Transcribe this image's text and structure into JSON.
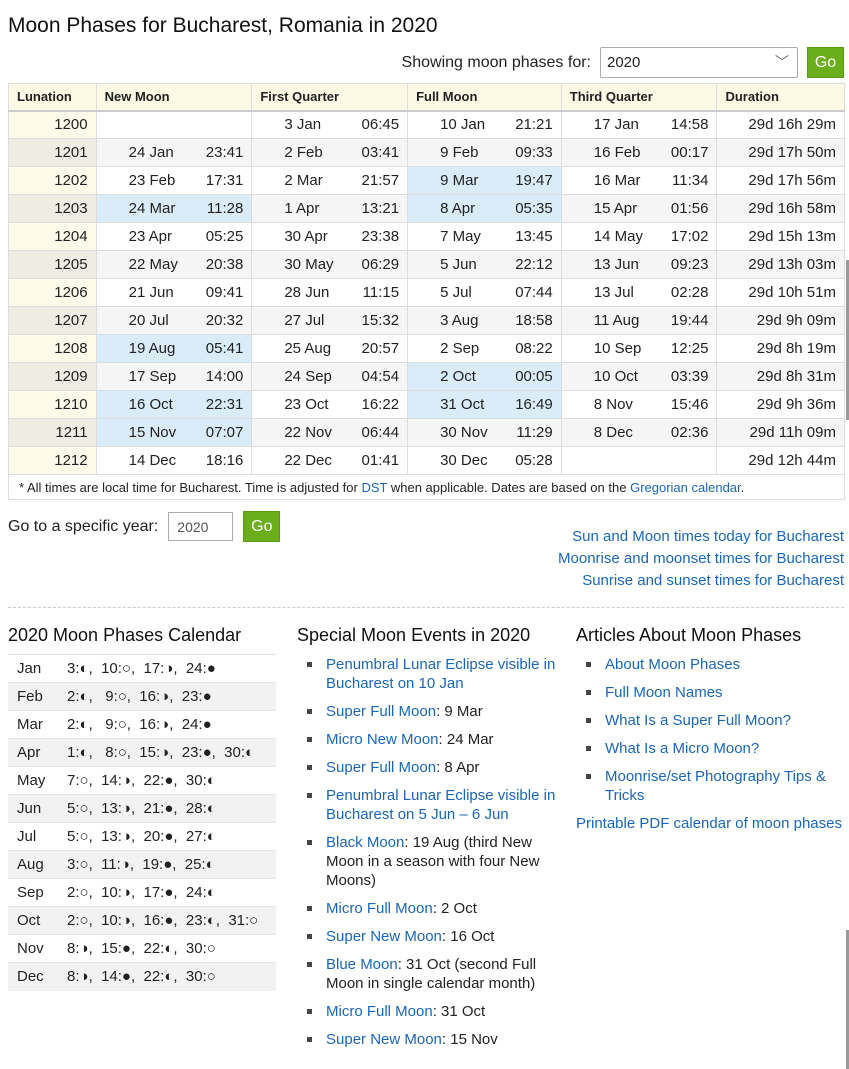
{
  "title": "Moon Phases for Bucharest, Romania in 2020",
  "selector": {
    "label": "Showing moon phases for:",
    "value": "2020",
    "go": "Go"
  },
  "table": {
    "headers": [
      "Lunation",
      "New Moon",
      "First Quarter",
      "Full Moon",
      "Third Quarter",
      "Duration"
    ],
    "rows": [
      {
        "lun": "1200",
        "new": [
          "",
          ""
        ],
        "fq": [
          "3 Jan",
          "06:45"
        ],
        "full": [
          "10 Jan",
          "21:21"
        ],
        "tq": [
          "17 Jan",
          "14:58"
        ],
        "dur": "29d 16h 29m",
        "hl": []
      },
      {
        "lun": "1201",
        "new": [
          "24 Jan",
          "23:41"
        ],
        "fq": [
          "2 Feb",
          "03:41"
        ],
        "full": [
          "9 Feb",
          "09:33"
        ],
        "tq": [
          "16 Feb",
          "00:17"
        ],
        "dur": "29d 17h 50m",
        "hl": []
      },
      {
        "lun": "1202",
        "new": [
          "23 Feb",
          "17:31"
        ],
        "fq": [
          "2 Mar",
          "21:57"
        ],
        "full": [
          "9 Mar",
          "19:47"
        ],
        "tq": [
          "16 Mar",
          "11:34"
        ],
        "dur": "29d 17h 56m",
        "hl": [
          "full"
        ]
      },
      {
        "lun": "1203",
        "new": [
          "24 Mar",
          "11:28"
        ],
        "fq": [
          "1 Apr",
          "13:21"
        ],
        "full": [
          "8 Apr",
          "05:35"
        ],
        "tq": [
          "15 Apr",
          "01:56"
        ],
        "dur": "29d 16h 58m",
        "hl": [
          "new",
          "full"
        ]
      },
      {
        "lun": "1204",
        "new": [
          "23 Apr",
          "05:25"
        ],
        "fq": [
          "30 Apr",
          "23:38"
        ],
        "full": [
          "7 May",
          "13:45"
        ],
        "tq": [
          "14 May",
          "17:02"
        ],
        "dur": "29d 15h 13m",
        "hl": []
      },
      {
        "lun": "1205",
        "new": [
          "22 May",
          "20:38"
        ],
        "fq": [
          "30 May",
          "06:29"
        ],
        "full": [
          "5 Jun",
          "22:12"
        ],
        "tq": [
          "13 Jun",
          "09:23"
        ],
        "dur": "29d 13h 03m",
        "hl": []
      },
      {
        "lun": "1206",
        "new": [
          "21 Jun",
          "09:41"
        ],
        "fq": [
          "28 Jun",
          "11:15"
        ],
        "full": [
          "5 Jul",
          "07:44"
        ],
        "tq": [
          "13 Jul",
          "02:28"
        ],
        "dur": "29d 10h 51m",
        "hl": []
      },
      {
        "lun": "1207",
        "new": [
          "20 Jul",
          "20:32"
        ],
        "fq": [
          "27 Jul",
          "15:32"
        ],
        "full": [
          "3 Aug",
          "18:58"
        ],
        "tq": [
          "11 Aug",
          "19:44"
        ],
        "dur": "29d 9h 09m",
        "hl": []
      },
      {
        "lun": "1208",
        "new": [
          "19 Aug",
          "05:41"
        ],
        "fq": [
          "25 Aug",
          "20:57"
        ],
        "full": [
          "2 Sep",
          "08:22"
        ],
        "tq": [
          "10 Sep",
          "12:25"
        ],
        "dur": "29d 8h 19m",
        "hl": [
          "new"
        ]
      },
      {
        "lun": "1209",
        "new": [
          "17 Sep",
          "14:00"
        ],
        "fq": [
          "24 Sep",
          "04:54"
        ],
        "full": [
          "2 Oct",
          "00:05"
        ],
        "tq": [
          "10 Oct",
          "03:39"
        ],
        "dur": "29d 8h 31m",
        "hl": [
          "full"
        ]
      },
      {
        "lun": "1210",
        "new": [
          "16 Oct",
          "22:31"
        ],
        "fq": [
          "23 Oct",
          "16:22"
        ],
        "full": [
          "31 Oct",
          "16:49"
        ],
        "tq": [
          "8 Nov",
          "15:46"
        ],
        "dur": "29d 9h 36m",
        "hl": [
          "new",
          "full"
        ]
      },
      {
        "lun": "1211",
        "new": [
          "15 Nov",
          "07:07"
        ],
        "fq": [
          "22 Nov",
          "06:44"
        ],
        "full": [
          "30 Nov",
          "11:29"
        ],
        "tq": [
          "8 Dec",
          "02:36"
        ],
        "dur": "29d 11h 09m",
        "hl": [
          "new"
        ]
      },
      {
        "lun": "1212",
        "new": [
          "14 Dec",
          "18:16"
        ],
        "fq": [
          "22 Dec",
          "01:41"
        ],
        "full": [
          "30 Dec",
          "05:28"
        ],
        "tq": [
          "",
          ""
        ],
        "dur": "29d 12h 44m",
        "hl": []
      }
    ]
  },
  "note": {
    "pre": "* All times are local time for Bucharest. Time is adjusted for ",
    "dst": "DST",
    "mid": " when applicable. Dates are based on the ",
    "greg": "Gregorian calendar",
    "post": "."
  },
  "goyear": {
    "label": "Go to a specific year:",
    "value": "2020",
    "go": "Go"
  },
  "right_links": [
    "Sun and Moon times today for Bucharest",
    "Moonrise and moonset times for Bucharest",
    "Sunrise and sunset times for Bucharest"
  ],
  "calendar": {
    "title": "2020 Moon Phases Calendar",
    "rows": [
      {
        "m": "Jan",
        "p": "3:◐,  10:○,  17:◑,  24:●"
      },
      {
        "m": "Feb",
        "p": "2:◐,   9:○,  16:◑,  23:●"
      },
      {
        "m": "Mar",
        "p": "2:◐,   9:○,  16:◑,  24:●"
      },
      {
        "m": "Apr",
        "p": "1:◐,   8:○,  15:◑,  23:●,  30:◐"
      },
      {
        "m": "May",
        "p": "7:○,  14:◑,  22:●,  30:◐"
      },
      {
        "m": "Jun",
        "p": "5:○,  13:◑,  21:●,  28:◐"
      },
      {
        "m": "Jul",
        "p": "5:○,  13:◑,  20:●,  27:◐"
      },
      {
        "m": "Aug",
        "p": "3:○,  11:◑,  19:●,  25:◐"
      },
      {
        "m": "Sep",
        "p": "2:○,  10:◑,  17:●,  24:◐"
      },
      {
        "m": "Oct",
        "p": "2:○,  10:◑,  16:●,  23:◐,  31:○"
      },
      {
        "m": "Nov",
        "p": "8:◑,  15:●,  22:◐,  30:○"
      },
      {
        "m": "Dec",
        "p": "8:◑,  14:●,  22:◐,  30:○"
      }
    ]
  },
  "events": {
    "title": "Special Moon Events in 2020",
    "items": [
      {
        "link": "Penumbral Lunar Eclipse visible in Bucharest on 10 Jan",
        "text": ""
      },
      {
        "link": "Super Full Moon",
        "text": ": 9 Mar"
      },
      {
        "link": "Micro New Moon",
        "text": ": 24 Mar"
      },
      {
        "link": "Super Full Moon",
        "text": ": 8 Apr"
      },
      {
        "link": "Penumbral Lunar Eclipse visible in Bucharest on 5 Jun – 6 Jun",
        "text": ""
      },
      {
        "link": "Black Moon",
        "text": ": 19 Aug (third New Moon in a season with four New Moons)"
      },
      {
        "link": "Micro Full Moon",
        "text": ": 2 Oct"
      },
      {
        "link": "Super New Moon",
        "text": ": 16 Oct"
      },
      {
        "link": "Blue Moon",
        "text": ": 31 Oct (second Full Moon in single calendar month)"
      },
      {
        "link": "Micro Full Moon",
        "text": ": 31 Oct"
      },
      {
        "link": "Super New Moon",
        "text": ": 15 Nov"
      }
    ]
  },
  "articles": {
    "title": "Articles About Moon Phases",
    "items": [
      "About Moon Phases",
      "Full Moon Names",
      "What Is a Super Full Moon?",
      "What Is a Micro Moon?",
      "Moonrise/set Photography Tips & Tricks"
    ],
    "pdf": "Printable PDF calendar of moon phases"
  }
}
